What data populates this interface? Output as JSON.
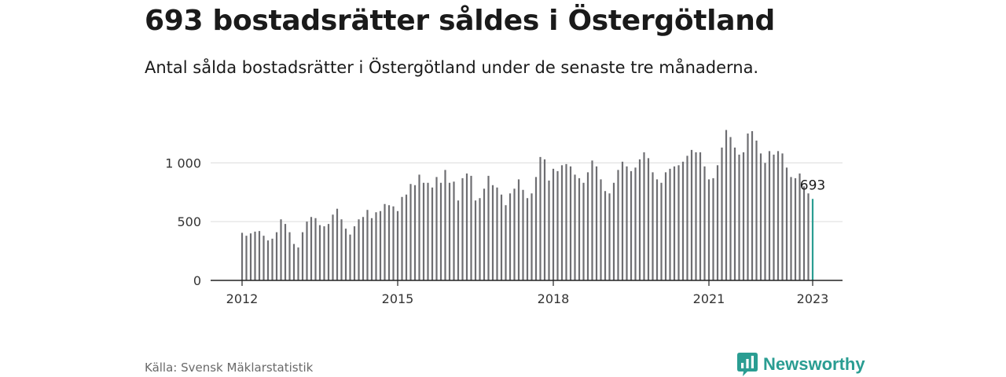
{
  "title": "693 bostadsrätter såldes i Östergötland",
  "subtitle": "Antal sålda bostadsrätter i Östergötland under de senaste tre månaderna.",
  "source": "Källa: Svensk Mäklarstatistik",
  "brand": {
    "name": "Newsworthy",
    "icon": "newsworthy-logo-icon",
    "color": "#2a9d92"
  },
  "chart_data": {
    "type": "bar",
    "x_start": "2012-01",
    "frequency": "monthly",
    "x_ticks": [
      "2012",
      "2015",
      "2018",
      "2021",
      "2023"
    ],
    "y_ticks": [
      "0",
      "500",
      "1 000"
    ],
    "ylim": [
      0,
      1350
    ],
    "grid": true,
    "bar_color": "#6e6e72",
    "highlight_color": "#2a9d92",
    "highlight_label": "693",
    "values": [
      405,
      380,
      400,
      415,
      420,
      380,
      340,
      355,
      410,
      520,
      480,
      410,
      310,
      280,
      410,
      500,
      540,
      530,
      470,
      460,
      480,
      560,
      610,
      520,
      440,
      390,
      460,
      520,
      540,
      600,
      530,
      580,
      590,
      650,
      640,
      630,
      590,
      710,
      730,
      820,
      810,
      900,
      830,
      830,
      790,
      880,
      830,
      940,
      830,
      840,
      680,
      870,
      910,
      890,
      680,
      700,
      780,
      890,
      810,
      790,
      730,
      640,
      740,
      780,
      860,
      770,
      700,
      740,
      880,
      1050,
      1030,
      850,
      950,
      930,
      980,
      990,
      970,
      900,
      870,
      830,
      920,
      1020,
      970,
      860,
      760,
      740,
      830,
      940,
      1010,
      970,
      930,
      960,
      1030,
      1090,
      1040,
      920,
      860,
      830,
      920,
      950,
      970,
      980,
      1010,
      1060,
      1110,
      1090,
      1090,
      970,
      860,
      870,
      980,
      1130,
      1280,
      1220,
      1130,
      1070,
      1090,
      1250,
      1270,
      1190,
      1080,
      1000,
      1100,
      1070,
      1100,
      1080,
      960,
      880,
      870,
      910,
      800,
      740,
      693
    ]
  }
}
